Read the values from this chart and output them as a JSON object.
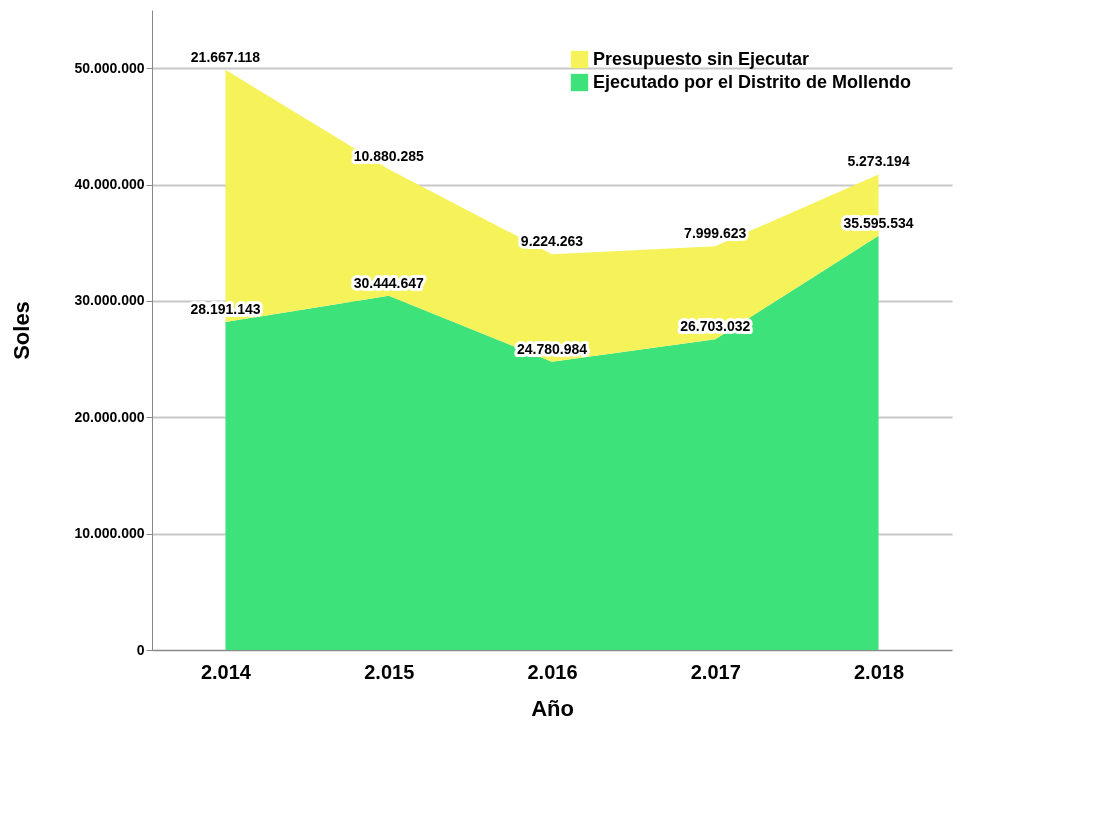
{
  "chart_data": {
    "type": "area",
    "stacked": true,
    "xlabel": "Año",
    "ylabel": "Soles",
    "categories": [
      "2.014",
      "2.015",
      "2.016",
      "2.017",
      "2.018"
    ],
    "series": [
      {
        "name": "Ejecutado por el Distrito de Mollendo",
        "color": "#3ee27a",
        "values": [
          28191143,
          30444647,
          24780984,
          26703032,
          35595534
        ],
        "value_labels": [
          "28.191.143",
          "30.444.647",
          "24.780.984",
          "26.703.032",
          "35.595.534"
        ]
      },
      {
        "name": "Presupuesto sin Ejecutar",
        "color": "#f5f25a",
        "values": [
          21667118,
          10880285,
          9224263,
          7999623,
          5273194
        ],
        "value_labels": [
          "21.667.118",
          "10.880.285",
          "9.224.263",
          "7.999.623",
          "5.273.194"
        ]
      }
    ],
    "ylim": [
      0,
      55000000
    ],
    "yticks": [
      {
        "value": 0,
        "label": "0"
      },
      {
        "value": 10000000,
        "label": "10.000.000"
      },
      {
        "value": 20000000,
        "label": "20.000.000"
      },
      {
        "value": 30000000,
        "label": "30.000.000"
      },
      {
        "value": 40000000,
        "label": "40.000.000"
      },
      {
        "value": 50000000,
        "label": "50.000.000"
      }
    ],
    "grid": "y",
    "legend": "top right"
  }
}
